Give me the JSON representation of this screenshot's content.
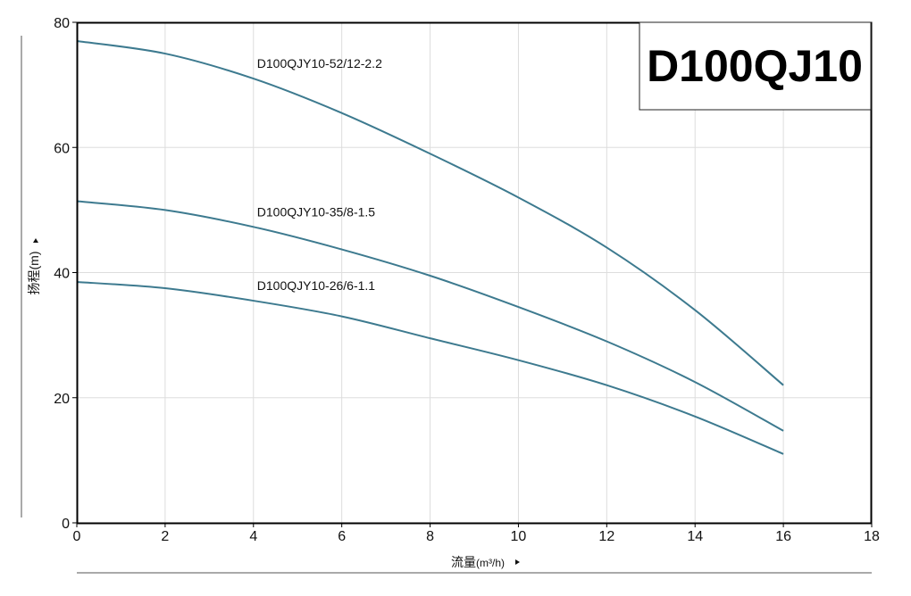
{
  "chart_data": {
    "type": "line",
    "title": "D100QJ10",
    "xlabel": "流量",
    "xlabel_unit": "(m³/h)",
    "ylabel": "扬程(m)",
    "xlim": [
      0,
      18
    ],
    "ylim": [
      0,
      80
    ],
    "xticks": [
      "0",
      "2",
      "4",
      "6",
      "8",
      "10",
      "12",
      "14",
      "16",
      "18"
    ],
    "yticks": [
      "0",
      "20",
      "40",
      "60",
      "80"
    ],
    "grid": true,
    "x": [
      0,
      2,
      4,
      6,
      8,
      10,
      12,
      14,
      16
    ],
    "series": [
      {
        "name": "D100QJY10-52/12-2.2",
        "values": [
          77,
          75,
          71,
          65.5,
          59,
          52,
          44,
          34,
          22
        ]
      },
      {
        "name": "D100QJY10-35/8-1.5",
        "values": [
          51.4,
          50,
          47.3,
          43.7,
          39.5,
          34.5,
          29,
          22.5,
          14.7
        ]
      },
      {
        "name": "D100QJY10-26/6-1.1",
        "values": [
          38.5,
          37.5,
          35.5,
          33,
          29.5,
          26,
          22,
          17,
          11
        ]
      }
    ],
    "colors": {
      "line": "#3d7a8f",
      "title_text": "#1f6378",
      "grid": "#dddddd",
      "frame": "#000000"
    }
  }
}
